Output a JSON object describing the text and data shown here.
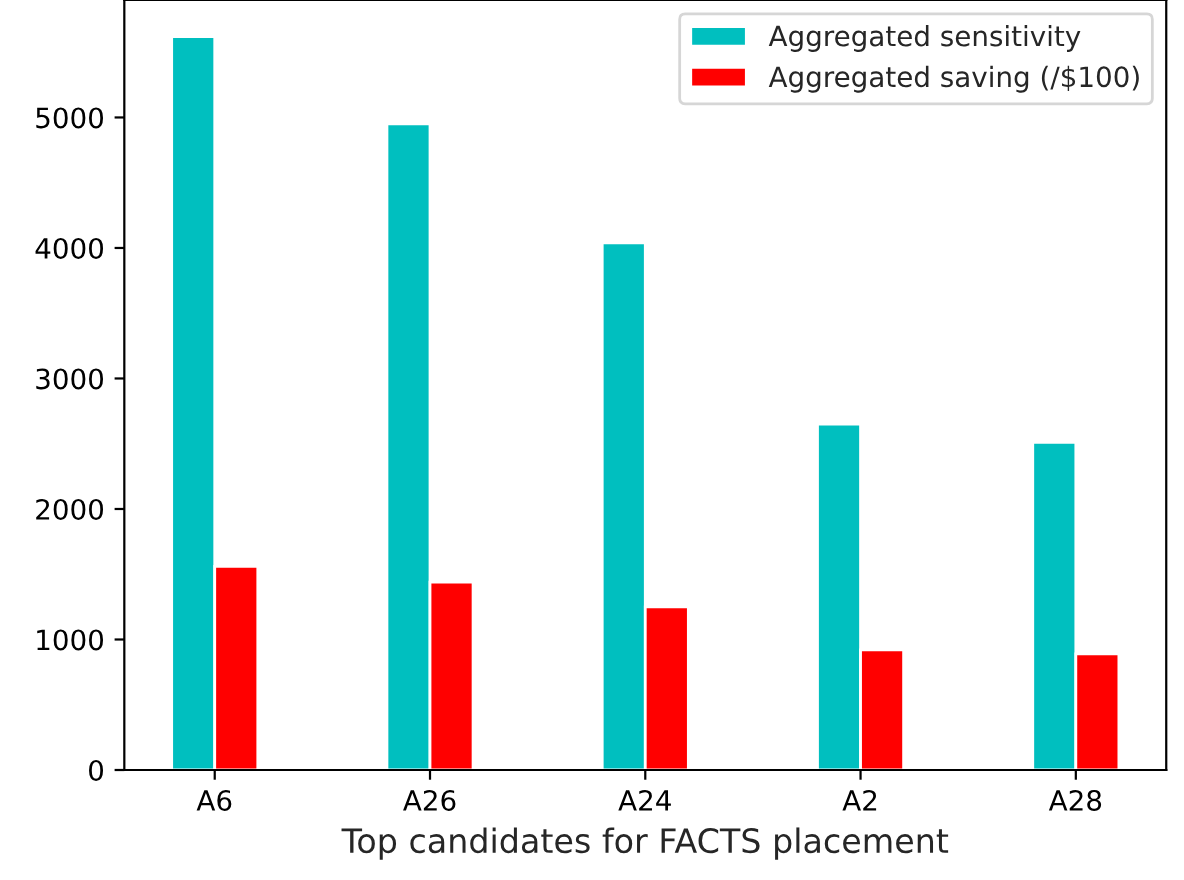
{
  "chart_data": {
    "type": "bar",
    "xlabel": "Top candidates for FACTS placement",
    "categories": [
      "A6",
      "A26",
      "A24",
      "A2",
      "A28"
    ],
    "series": [
      {
        "name": "Aggregated sensitivity",
        "color": "#00bfbf",
        "values": [
          5620,
          4950,
          4040,
          2650,
          2510
        ]
      },
      {
        "name": "Aggregated saving (/$100)",
        "color": "#ff0000",
        "values": [
          1560,
          1440,
          1250,
          920,
          890
        ]
      }
    ],
    "ylim": [
      0,
      5900
    ],
    "yticks": [
      0,
      1000,
      2000,
      3000,
      4000,
      5000
    ],
    "grid": false,
    "legend": "top right"
  }
}
